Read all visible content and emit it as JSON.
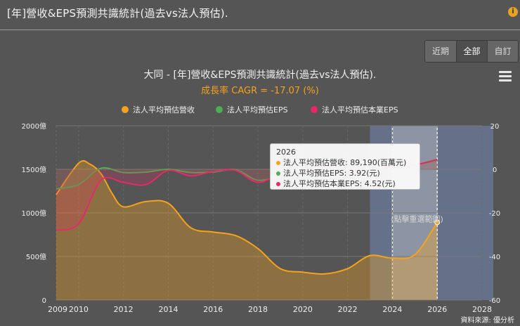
{
  "header": {
    "title": "[年]營收&EPS預測共識統計(過去vs法人預估).",
    "info_icon": "i"
  },
  "range_tabs": [
    {
      "label": "近期",
      "active": false
    },
    {
      "label": "全部",
      "active": true
    },
    {
      "label": "自訂",
      "active": false
    }
  ],
  "colors": {
    "revenue": "#f5a21d",
    "eps": "#4caf50",
    "core_eps": "#e9276b",
    "band": "#7b95c8"
  },
  "chart_data": {
    "type": "line",
    "title": "大同 - [年]營收&EPS預測共識統計(過去vs法人預估).",
    "subtitle": "成長率 CAGR = -17.07 (%)",
    "legend": [
      "法人平均預估營收",
      "法人平均預估EPS",
      "法人平均預估本業EPS"
    ],
    "x_range": [
      2009,
      2028
    ],
    "x_ticks": [
      2009,
      2010,
      2012,
      2014,
      2016,
      2018,
      2020,
      2022,
      2024,
      2026,
      2028
    ],
    "x_tick_labels": [
      "2009",
      "2010",
      "2012",
      "2014",
      "2016",
      "2018",
      "2020",
      "2022",
      "2024",
      "2026",
      "2028"
    ],
    "y_left": {
      "range": [
        0,
        2000
      ],
      "ticks": [
        0,
        500,
        1000,
        1500,
        2000
      ],
      "tick_labels": [
        "0",
        "500億",
        "1000億",
        "1500億",
        "2000億"
      ]
    },
    "y_right": {
      "range": [
        -60,
        20
      ],
      "ticks": [
        -60,
        -40,
        -20,
        0,
        20
      ],
      "tick_labels": [
        "-60",
        "-40",
        "-20",
        "0",
        "20"
      ]
    },
    "series": [
      {
        "name": "法人平均預估營收",
        "axis": "left",
        "x": [
          2009,
          2010,
          2010.5,
          2011,
          2011.5,
          2012,
          2013,
          2014,
          2015,
          2016,
          2017,
          2018,
          2019,
          2020,
          2021,
          2022,
          2023,
          2024,
          2025,
          2026
        ],
        "values": [
          1210,
          1570,
          1560,
          1450,
          1220,
          1070,
          1130,
          1110,
          830,
          780,
          740,
          590,
          360,
          320,
          300,
          360,
          510,
          480,
          520,
          892
        ]
      },
      {
        "name": "法人平均預估EPS",
        "axis": "right",
        "x": [
          2009,
          2010,
          2011,
          2012,
          2013,
          2014,
          2015,
          2016,
          2017,
          2018,
          2019,
          2020,
          2021,
          2022,
          2023,
          2024,
          2025,
          2026
        ],
        "values": [
          -9,
          -7,
          0.5,
          -1.5,
          -1.3,
          0,
          -1.5,
          -1.2,
          -0.2,
          -5,
          -3,
          -1,
          -0.5,
          0,
          0.5,
          1,
          2,
          3.92
        ]
      },
      {
        "name": "法人平均預估本業EPS",
        "axis": "right",
        "x": [
          2009,
          2010,
          2011,
          2012,
          2013,
          2014,
          2015,
          2016,
          2017,
          2018,
          2019,
          2020,
          2021,
          2022,
          2023,
          2024,
          2025,
          2026
        ],
        "values": [
          -28,
          -25,
          -5,
          -6,
          -7,
          -0.5,
          -3,
          -1,
          -0.5,
          -6,
          -2,
          -0.5,
          0.5,
          0,
          0.2,
          1,
          2,
          4.52
        ]
      }
    ],
    "forecast_band": {
      "from": 2023,
      "to": 2028.5,
      "label": "(點擊重選範圍)"
    },
    "selected_range": {
      "from": 2024,
      "to": 2026
    }
  },
  "tooltip": {
    "title": "2026",
    "rows": [
      {
        "label": "法人平均預估營收: 89,190(百萬元)"
      },
      {
        "label": "法人平均預估EPS: 3.92(元)"
      },
      {
        "label": "法人平均預估本業EPS: 4.52(元)"
      }
    ]
  },
  "source": "資料來源: 優分析"
}
